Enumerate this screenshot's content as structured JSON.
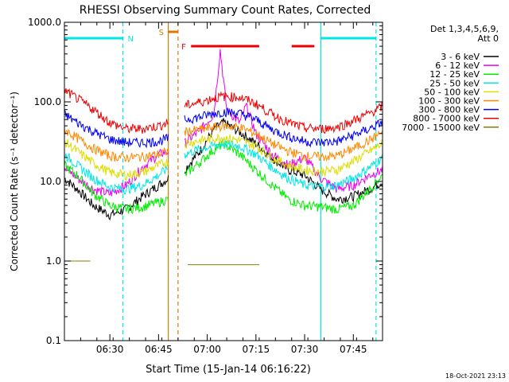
{
  "chart_data": {
    "type": "line",
    "title": "RHESSI Observing Summary Count Rates, Corrected",
    "xlabel": "Start Time (15-Jan-14 06:16:22)",
    "ylabel": "Corrected Count Rate (s⁻¹ detector⁻¹)",
    "ylog": true,
    "ylim": [
      0.1,
      1000
    ],
    "xlim": [
      "06:16",
      "07:54"
    ],
    "y_ticks": [
      "0.1",
      "1.0",
      "10.0",
      "100.0",
      "1000.0"
    ],
    "x_ticks": [
      "06:30",
      "06:45",
      "07:00",
      "07:15",
      "07:30",
      "07:45"
    ],
    "detector_info": [
      "Det 1,3,4,5,6,9,",
      "Att 0"
    ],
    "footer_date": "18-Oct-2021 23:13",
    "flags": [
      {
        "label": "N",
        "color": "#00e5e5",
        "segments": [
          [
            "06:16",
            "06:34"
          ],
          [
            "07:35",
            "07:52"
          ]
        ]
      },
      {
        "label": "S",
        "color": "#e07800",
        "segments": [
          [
            "06:48",
            "06:51"
          ]
        ]
      },
      {
        "label": "F",
        "color": "#ee0000",
        "segments": [
          [
            "06:55",
            "07:16"
          ],
          [
            "07:26",
            "07:33"
          ]
        ]
      }
    ],
    "vlines": [
      {
        "t": "06:34",
        "color": "#00e5e5",
        "style": "dashed"
      },
      {
        "t": "07:35",
        "color": "#00e5e5",
        "style": "solid"
      },
      {
        "t": "07:52",
        "color": "#00e5e5",
        "style": "dashed"
      },
      {
        "t": "06:48",
        "color": "#e07800",
        "style": "solid"
      },
      {
        "t": "06:51",
        "color": "#e07800",
        "style": "dashed"
      }
    ],
    "gap": [
      "06:48",
      "06:53"
    ],
    "series": [
      {
        "name": "3 - 6 keV",
        "color": "#000000",
        "x": [
          "06:16",
          "06:20",
          "06:25",
          "06:30",
          "06:35",
          "06:40",
          "06:45",
          "06:48",
          "06:53",
          "06:58",
          "07:02",
          "07:05",
          "07:10",
          "07:15",
          "07:20",
          "07:25",
          "07:30",
          "07:35",
          "07:40",
          "07:45",
          "07:50",
          "07:54"
        ],
        "y": [
          11,
          8,
          5,
          3.8,
          4.5,
          6.5,
          9,
          11,
          14,
          25,
          45,
          55,
          42,
          30,
          20,
          14,
          12,
          8,
          6,
          6.5,
          8,
          10
        ]
      },
      {
        "name": "6 - 12 keV",
        "color": "#ee00ee",
        "x": [
          "06:16",
          "06:20",
          "06:25",
          "06:30",
          "06:35",
          "06:40",
          "06:45",
          "06:48",
          "06:53",
          "06:58",
          "07:02",
          "07:04",
          "07:06",
          "07:10",
          "07:12",
          "07:15",
          "07:20",
          "07:25",
          "07:30",
          "07:35",
          "07:40",
          "07:45",
          "07:50",
          "07:54"
        ],
        "y": [
          15,
          11,
          8,
          7,
          9,
          15,
          22,
          24,
          30,
          45,
          70,
          450,
          80,
          55,
          90,
          40,
          22,
          16,
          20,
          11,
          8,
          9,
          12,
          14
        ]
      },
      {
        "name": "12 - 25 keV",
        "color": "#00ee00",
        "x": [
          "06:16",
          "06:20",
          "06:25",
          "06:30",
          "06:35",
          "06:40",
          "06:45",
          "06:48",
          "06:53",
          "06:58",
          "07:02",
          "07:05",
          "07:10",
          "07:15",
          "07:20",
          "07:25",
          "07:30",
          "07:35",
          "07:40",
          "07:45",
          "07:50",
          "07:54"
        ],
        "y": [
          16,
          12,
          7,
          5,
          4.5,
          4.8,
          5.5,
          6,
          12,
          18,
          25,
          30,
          22,
          14,
          9,
          6,
          5,
          4.8,
          4.5,
          5,
          8,
          12
        ]
      },
      {
        "name": "25 - 50 keV",
        "color": "#00e5e5",
        "x": [
          "06:16",
          "06:20",
          "06:25",
          "06:30",
          "06:35",
          "06:40",
          "06:45",
          "06:48",
          "06:53",
          "06:58",
          "07:02",
          "07:05",
          "07:10",
          "07:15",
          "07:20",
          "07:25",
          "07:30",
          "07:35",
          "07:40",
          "07:45",
          "07:50",
          "07:54"
        ],
        "y": [
          22,
          16,
          11,
          8.5,
          8,
          9,
          12,
          15,
          22,
          26,
          28,
          30,
          28,
          22,
          15,
          11,
          9,
          8.5,
          9,
          11,
          15,
          20
        ]
      },
      {
        "name": "50 - 100 keV",
        "color": "#dddd00",
        "x": [
          "06:16",
          "06:20",
          "06:25",
          "06:30",
          "06:35",
          "06:40",
          "06:45",
          "06:48",
          "06:53",
          "06:58",
          "07:02",
          "07:05",
          "07:10",
          "07:15",
          "07:20",
          "07:25",
          "07:30",
          "07:35",
          "07:40",
          "07:45",
          "07:50",
          "07:54"
        ],
        "y": [
          32,
          24,
          17,
          13,
          12,
          13,
          16,
          18,
          30,
          33,
          35,
          36,
          33,
          28,
          20,
          16,
          14,
          13.5,
          14,
          18,
          24,
          30
        ]
      },
      {
        "name": "100 - 300 keV",
        "color": "#ff8800",
        "x": [
          "06:16",
          "06:20",
          "06:25",
          "06:30",
          "06:35",
          "06:40",
          "06:45",
          "06:48",
          "06:53",
          "06:58",
          "07:02",
          "07:05",
          "07:10",
          "07:15",
          "07:20",
          "07:25",
          "07:30",
          "07:35",
          "07:40",
          "07:45",
          "07:50",
          "07:54"
        ],
        "y": [
          45,
          35,
          26,
          21,
          20,
          20.5,
          22,
          24,
          42,
          45,
          48,
          50,
          48,
          40,
          30,
          24,
          21,
          20.5,
          21,
          26,
          33,
          42
        ]
      },
      {
        "name": "300 - 800 keV",
        "color": "#0000ee",
        "x": [
          "06:16",
          "06:20",
          "06:25",
          "06:30",
          "06:35",
          "06:40",
          "06:45",
          "06:48",
          "06:53",
          "06:58",
          "07:02",
          "07:05",
          "07:10",
          "07:15",
          "07:20",
          "07:25",
          "07:30",
          "07:35",
          "07:40",
          "07:45",
          "07:50",
          "07:54"
        ],
        "y": [
          70,
          55,
          42,
          34,
          31,
          31,
          32,
          35,
          60,
          65,
          72,
          75,
          72,
          60,
          45,
          37,
          32,
          31,
          32,
          38,
          46,
          56
        ]
      },
      {
        "name": "800 - 7000 keV",
        "color": "#ee0000",
        "x": [
          "06:16",
          "06:20",
          "06:25",
          "06:30",
          "06:35",
          "06:40",
          "06:45",
          "06:48",
          "06:53",
          "06:58",
          "07:02",
          "07:05",
          "07:10",
          "07:15",
          "07:20",
          "07:25",
          "07:30",
          "07:35",
          "07:40",
          "07:45",
          "07:50",
          "07:54"
        ],
        "y": [
          140,
          110,
          80,
          55,
          46,
          46,
          50,
          55,
          90,
          100,
          112,
          118,
          115,
          95,
          70,
          55,
          47,
          46,
          48,
          58,
          72,
          88
        ]
      },
      {
        "name": "7000 - 15000 keV",
        "color": "#808000",
        "x": [
          "06:16",
          "06:20",
          "06:24",
          "06:54",
          "07:16",
          "07:52",
          "07:54"
        ],
        "y": [
          1.0,
          1.0,
          1.0,
          0.9,
          0.9,
          1.0,
          1.0
        ]
      }
    ]
  }
}
